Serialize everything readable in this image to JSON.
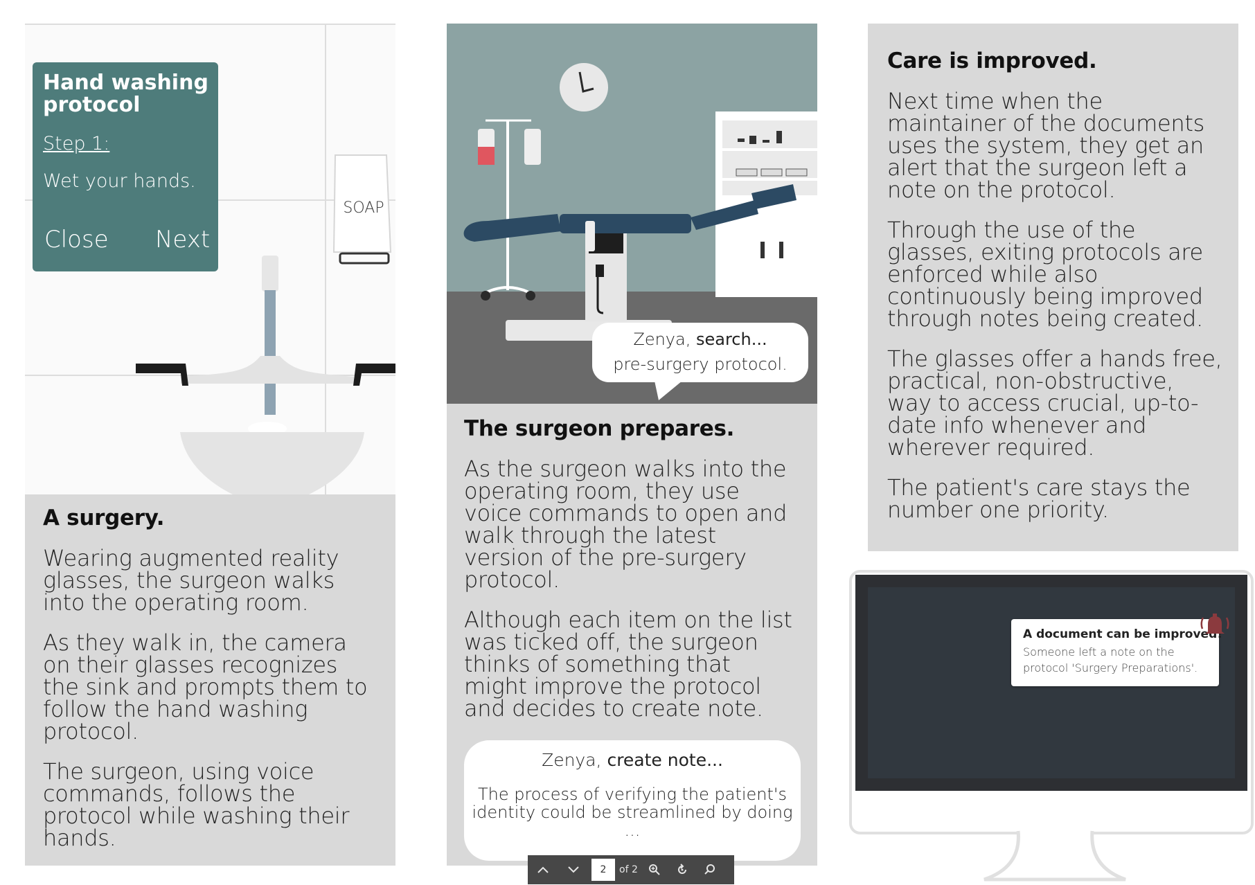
{
  "panel1": {
    "ar_card": {
      "title": "Hand washing protocol",
      "step": "Step 1:",
      "instruction": "Wet your hands.",
      "close_label": "Close",
      "next_label": "Next"
    },
    "soap_label": "SOAP",
    "heading": "A surgery.",
    "paragraphs": [
      "Wearing augmented reality glasses, the surgeon walks into the operating room.",
      "As they walk in, the camera on their glasses recognizes the sink and prompts them to follow the hand washing protocol.",
      "The surgeon, using voice commands, follows the protocol while washing their hands."
    ]
  },
  "panel2": {
    "search_bubble": {
      "prefix": "Zenya, ",
      "command": "search...",
      "query": "pre-surgery protocol."
    },
    "heading": "The surgeon prepares.",
    "paragraphs": [
      "As the surgeon walks into the operating room, they use voice commands to open and walk through the latest version of the pre-surgery protocol.",
      "Although each item on the list was ticked off, the surgeon thinks of something that might improve the protocol and decides to create note."
    ],
    "note_bubble": {
      "prefix": "Zenya, ",
      "command": "create note...",
      "note": "The process of verifying the patient's identity could be streamlined by doing ..."
    }
  },
  "panel3": {
    "heading": "Care is improved.",
    "paragraphs": [
      "Next time when the maintainer of the documents uses the system, they get an alert that the surgeon left a note on the protocol.",
      "Through the use of the glasses, exiting protocols are enforced while also continuously being improved through notes being created.",
      "The glasses offer a hands free, practical, non-obstructive, way to access crucial, up-to-date info whenever and wherever required.",
      "The patient's care stays the number one priority."
    ],
    "notification": {
      "title": "A document can be improved!",
      "body": "Someone left a note on the protocol 'Surgery Preparations'."
    }
  },
  "pdf_toolbar": {
    "current_page": "2",
    "page_count": "of 2",
    "icons": [
      "chevron-up-icon",
      "chevron-down-icon",
      "zoom-in-icon",
      "rotate-icon",
      "search-icon"
    ]
  },
  "colors": {
    "panel_gray": "#d9d9d9",
    "ar_card": "#4e7c7b",
    "or_wall": "#8ca3a3",
    "or_floor": "#6a6a6a",
    "table": "#2c4a63",
    "monitor_screen": "#30353b",
    "bell": "#8b3a3e"
  }
}
